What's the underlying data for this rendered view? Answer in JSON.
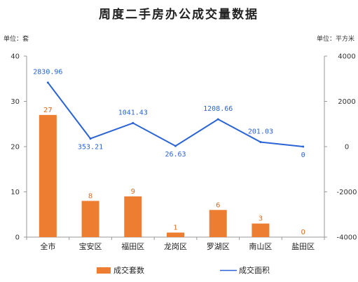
{
  "chart_data": {
    "type": "bar",
    "title": "周度二手房办公成交量数据",
    "left_unit": "单位：套",
    "right_unit": "单位：平方米",
    "categories": [
      "全市",
      "宝安区",
      "福田区",
      "龙岗区",
      "罗湖区",
      "南山区",
      "盐田区"
    ],
    "series": [
      {
        "name": "成交套数",
        "type": "bar",
        "axis": "left",
        "values": [
          27,
          8,
          9,
          1,
          6,
          3,
          0
        ],
        "labels": [
          "27",
          "8",
          "9",
          "1",
          "6",
          "3",
          "0"
        ]
      },
      {
        "name": "成交面积",
        "type": "line",
        "axis": "right",
        "values": [
          2830.96,
          353.21,
          1041.43,
          26.63,
          1208.66,
          201.03,
          0
        ],
        "labels": [
          "2830.96",
          "353.21",
          "1041.43",
          "26.63",
          "1208.66",
          "201.03",
          "0"
        ]
      }
    ],
    "y_left": {
      "min": 0,
      "max": 40,
      "ticks": [
        "0",
        "10",
        "20",
        "30",
        "40"
      ]
    },
    "y_right": {
      "min": -4000,
      "max": 4000,
      "ticks": [
        "-4000",
        "-2000",
        "0",
        "2000",
        "4000"
      ]
    },
    "grid": false,
    "legend_position": "bottom",
    "colors": {
      "bar": "#ed7d31",
      "bar_label": "#d9691a",
      "line": "#2a63d6",
      "axis": "#999999"
    }
  }
}
